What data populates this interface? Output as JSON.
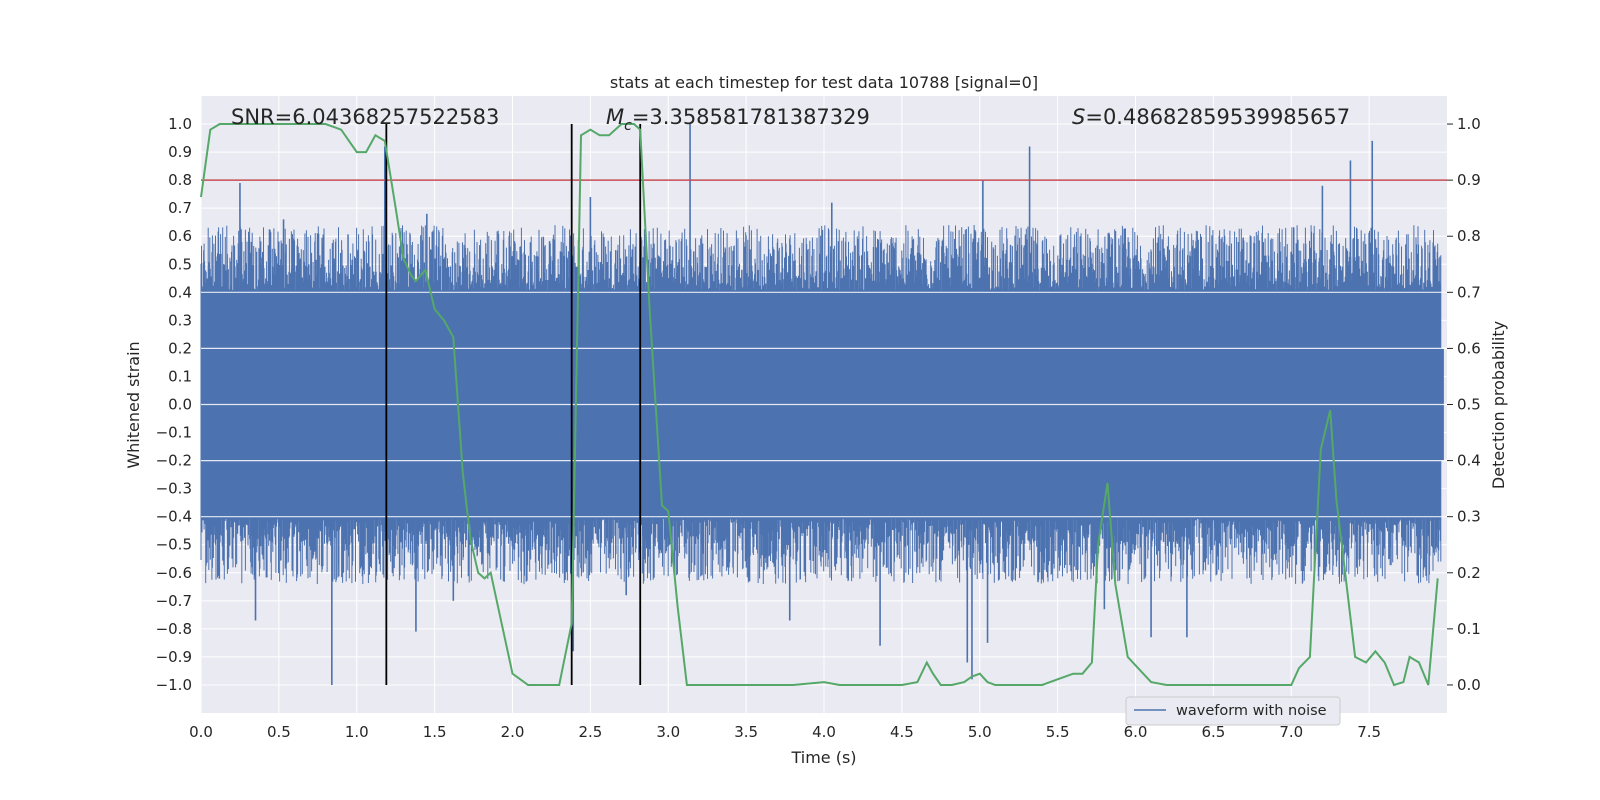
{
  "chart_data": {
    "type": "line",
    "title": "stats at each timestep for test data 10788 [signal=0]",
    "xlabel": "Time (s)",
    "ylabel": "Whitened strain",
    "y2label": "Detection probability",
    "xlim": [
      0,
      8
    ],
    "ylim": [
      -1.1,
      1.1
    ],
    "y2lim": [
      -0.05,
      1.05
    ],
    "x_ticks": [
      0.0,
      0.5,
      1.0,
      1.5,
      2.0,
      2.5,
      3.0,
      3.5,
      4.0,
      4.5,
      5.0,
      5.5,
      6.0,
      6.5,
      7.0,
      7.5
    ],
    "x_tick_labels": [
      "0.0",
      "0.5",
      "1.0",
      "1.5",
      "2.0",
      "2.5",
      "3.0",
      "3.5",
      "4.0",
      "4.5",
      "5.0",
      "5.5",
      "6.0",
      "6.5",
      "7.0",
      "7.5"
    ],
    "y_ticks": [
      1.0,
      0.9,
      0.8,
      0.7,
      0.6,
      0.5,
      0.4,
      0.3,
      0.2,
      0.1,
      0.0,
      -0.1,
      -0.2,
      -0.3,
      -0.4,
      -0.5,
      -0.6,
      -0.7,
      -0.8,
      -0.9,
      -1.0
    ],
    "y_tick_labels": [
      "1.0",
      "0.9",
      "0.8",
      "0.7",
      "0.6",
      "0.5",
      "0.4",
      "0.3",
      "0.2",
      "0.1",
      "0.0",
      "−0.1",
      "−0.2",
      "−0.3",
      "−0.4",
      "−0.5",
      "−0.6",
      "−0.7",
      "−0.8",
      "−0.9",
      "−1.0"
    ],
    "y2_ticks": [
      1.0,
      0.9,
      0.8,
      0.7,
      0.6,
      0.5,
      0.4,
      0.3,
      0.2,
      0.1,
      0.0
    ],
    "y2_tick_labels": [
      "1.0",
      "0.9",
      "0.8",
      "0.7",
      "0.6",
      "0.5",
      "0.4",
      "0.3",
      "0.2",
      "0.1",
      "0.0"
    ],
    "grid": true,
    "legend": {
      "entries": [
        "waveform with noise"
      ],
      "position": "lower-right"
    },
    "annotations": {
      "snr": "SNR=6.04368257522583",
      "mc_symbol": "M",
      "mc_sub": "c",
      "mc_value": "=3.358581781387329",
      "s_symbol": "S",
      "s_value": "=0.48682859539985657"
    },
    "threshold": {
      "value": 0.8,
      "color": "#c44e52"
    },
    "vertical_markers": [
      1.19,
      2.38,
      2.82
    ],
    "series": [
      {
        "name": "waveform with noise",
        "axis": "left",
        "color": "#4c72b0",
        "x_range": [
          0,
          8
        ],
        "typical_amplitude": 0.45,
        "peaks": [
          {
            "x": 0.25,
            "v": 0.79
          },
          {
            "x": 0.53,
            "v": 0.66
          },
          {
            "x": 1.18,
            "v": 0.92
          },
          {
            "x": 1.45,
            "v": 0.68
          },
          {
            "x": 2.5,
            "v": 0.74
          },
          {
            "x": 3.14,
            "v": 1.0
          },
          {
            "x": 4.05,
            "v": 0.72
          },
          {
            "x": 5.02,
            "v": 0.8
          },
          {
            "x": 5.32,
            "v": 0.92
          },
          {
            "x": 7.2,
            "v": 0.78
          },
          {
            "x": 7.38,
            "v": 0.87
          },
          {
            "x": 7.52,
            "v": 0.94
          },
          {
            "x": 0.84,
            "v": -1.0
          },
          {
            "x": 0.35,
            "v": -0.77
          },
          {
            "x": 1.38,
            "v": -0.81
          },
          {
            "x": 2.39,
            "v": -0.88
          },
          {
            "x": 3.78,
            "v": -0.77
          },
          {
            "x": 4.36,
            "v": -0.86
          },
          {
            "x": 4.92,
            "v": -0.92
          },
          {
            "x": 4.95,
            "v": -0.98
          },
          {
            "x": 5.05,
            "v": -0.85
          },
          {
            "x": 6.1,
            "v": -0.83
          },
          {
            "x": 6.33,
            "v": -0.83
          },
          {
            "x": 2.73,
            "v": -0.68
          },
          {
            "x": 1.62,
            "v": -0.7
          },
          {
            "x": 5.8,
            "v": -0.73
          }
        ]
      },
      {
        "name": "detection probability",
        "axis": "right",
        "color": "#55a868",
        "x": [
          0,
          0.06,
          0.12,
          0.2,
          0.3,
          0.4,
          0.5,
          0.6,
          0.7,
          0.8,
          0.9,
          0.95,
          1.0,
          1.06,
          1.12,
          1.18,
          1.25,
          1.3,
          1.35,
          1.38,
          1.44,
          1.5,
          1.56,
          1.62,
          1.68,
          1.73,
          1.78,
          1.82,
          1.86,
          2.0,
          2.05,
          2.1,
          2.2,
          2.3,
          2.38,
          2.44,
          2.5,
          2.56,
          2.62,
          2.7,
          2.78,
          2.82,
          2.88,
          2.96,
          3.0,
          3.06,
          3.12,
          3.2,
          3.3,
          3.5,
          3.8,
          4.0,
          4.1,
          4.3,
          4.5,
          4.6,
          4.66,
          4.7,
          4.75,
          4.82,
          4.9,
          4.95,
          5.0,
          5.05,
          5.1,
          5.2,
          5.3,
          5.4,
          5.5,
          5.6,
          5.66,
          5.72,
          5.76,
          5.82,
          5.87,
          5.95,
          6.05,
          6.1,
          6.2,
          6.5,
          6.8,
          6.9,
          7.0,
          7.05,
          7.12,
          7.19,
          7.25,
          7.29,
          7.35,
          7.41,
          7.48,
          7.54,
          7.6,
          7.66,
          7.72,
          7.76,
          7.82,
          7.88,
          7.94
        ],
        "y": [
          0.87,
          0.99,
          1.0,
          1.0,
          1.0,
          1.0,
          1.0,
          1.0,
          1.0,
          1.0,
          0.99,
          0.97,
          0.95,
          0.95,
          0.98,
          0.97,
          0.85,
          0.76,
          0.73,
          0.72,
          0.74,
          0.67,
          0.65,
          0.62,
          0.38,
          0.26,
          0.2,
          0.19,
          0.2,
          0.02,
          0.01,
          0.0,
          0.0,
          0.0,
          0.11,
          0.98,
          0.99,
          0.98,
          0.98,
          1.0,
          1.0,
          0.99,
          0.67,
          0.32,
          0.31,
          0.14,
          0.0,
          0.0,
          0.0,
          0.0,
          0.0,
          0.005,
          0.0,
          0.0,
          0.0,
          0.005,
          0.04,
          0.02,
          0.0,
          0.0,
          0.005,
          0.015,
          0.02,
          0.005,
          0.0,
          0.0,
          0.0,
          0.0,
          0.01,
          0.02,
          0.02,
          0.04,
          0.25,
          0.36,
          0.18,
          0.05,
          0.02,
          0.005,
          0.0,
          0.0,
          0.0,
          0.0,
          0.0,
          0.03,
          0.05,
          0.42,
          0.49,
          0.33,
          0.19,
          0.05,
          0.04,
          0.06,
          0.04,
          0.0,
          0.005,
          0.05,
          0.04,
          0.0,
          0.19
        ]
      }
    ]
  }
}
